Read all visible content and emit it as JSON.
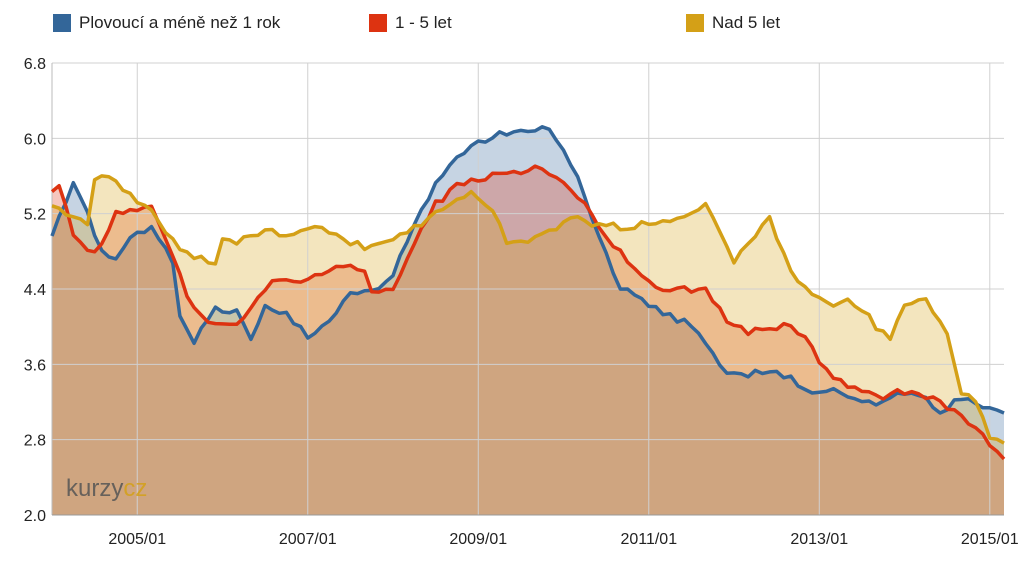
{
  "chart_data": {
    "type": "area",
    "x_start": "2004/01",
    "x_end": "2015/03",
    "xticks": [
      "2005/01",
      "2007/01",
      "2009/01",
      "2011/01",
      "2013/01",
      "2015/01"
    ],
    "yticks": [
      "2.0",
      "2.8",
      "3.6",
      "4.4",
      "5.2",
      "6.0",
      "6.8"
    ],
    "ylim": [
      2.0,
      6.8
    ],
    "grid": true,
    "legend_position": "top",
    "watermark": {
      "part1": "kurzy",
      "part2": "cz",
      "color1": "#555555",
      "color2": "#d4a017"
    },
    "series": [
      {
        "name": "Plovoucí a méně než 1 rok",
        "color": "#336699",
        "anchors": [
          [
            "2004/01",
            4.95
          ],
          [
            "2004/04",
            5.55
          ],
          [
            "2004/06",
            5.2
          ],
          [
            "2004/08",
            4.8
          ],
          [
            "2004/10",
            4.75
          ],
          [
            "2004/12",
            4.95
          ],
          [
            "2005/03",
            5.05
          ],
          [
            "2005/06",
            4.7
          ],
          [
            "2005/07",
            4.1
          ],
          [
            "2005/09",
            3.85
          ],
          [
            "2005/12",
            4.2
          ],
          [
            "2006/03",
            4.15
          ],
          [
            "2006/05",
            3.9
          ],
          [
            "2006/07",
            4.2
          ],
          [
            "2006/10",
            4.15
          ],
          [
            "2007/01",
            3.9
          ],
          [
            "2007/04",
            4.05
          ],
          [
            "2007/07",
            4.35
          ],
          [
            "2007/10",
            4.35
          ],
          [
            "2008/01",
            4.55
          ],
          [
            "2008/04",
            5.1
          ],
          [
            "2008/07",
            5.5
          ],
          [
            "2008/10",
            5.8
          ],
          [
            "2009/01",
            5.95
          ],
          [
            "2009/04",
            6.05
          ],
          [
            "2009/07",
            6.1
          ],
          [
            "2009/09",
            6.05
          ],
          [
            "2009/10",
            6.15
          ],
          [
            "2009/12",
            6.0
          ],
          [
            "2010/03",
            5.6
          ],
          [
            "2010/06",
            4.95
          ],
          [
            "2010/09",
            4.4
          ],
          [
            "2010/12",
            4.3
          ],
          [
            "2011/03",
            4.15
          ],
          [
            "2011/06",
            4.05
          ],
          [
            "2011/09",
            3.85
          ],
          [
            "2011/12",
            3.5
          ],
          [
            "2012/03",
            3.5
          ],
          [
            "2012/06",
            3.55
          ],
          [
            "2012/09",
            3.45
          ],
          [
            "2012/12",
            3.3
          ],
          [
            "2013/03",
            3.35
          ],
          [
            "2013/06",
            3.2
          ],
          [
            "2013/09",
            3.2
          ],
          [
            "2013/12",
            3.3
          ],
          [
            "2014/03",
            3.3
          ],
          [
            "2014/06",
            3.1
          ],
          [
            "2014/09",
            3.25
          ],
          [
            "2014/12",
            3.15
          ],
          [
            "2015/03",
            3.05
          ]
        ]
      },
      {
        "name": "1 - 5 let",
        "color": "#dd3311",
        "anchors": [
          [
            "2004/01",
            5.45
          ],
          [
            "2004/02",
            5.5
          ],
          [
            "2004/04",
            5.0
          ],
          [
            "2004/06",
            4.8
          ],
          [
            "2004/08",
            4.85
          ],
          [
            "2004/10",
            5.2
          ],
          [
            "2004/12",
            5.25
          ],
          [
            "2005/03",
            5.25
          ],
          [
            "2005/06",
            4.75
          ],
          [
            "2005/08",
            4.35
          ],
          [
            "2005/10",
            4.1
          ],
          [
            "2005/12",
            4.05
          ],
          [
            "2006/03",
            4.0
          ],
          [
            "2006/05",
            4.2
          ],
          [
            "2006/08",
            4.5
          ],
          [
            "2006/11",
            4.5
          ],
          [
            "2007/01",
            4.5
          ],
          [
            "2007/04",
            4.6
          ],
          [
            "2007/07",
            4.65
          ],
          [
            "2007/09",
            4.6
          ],
          [
            "2007/10",
            4.4
          ],
          [
            "2008/01",
            4.4
          ],
          [
            "2008/04",
            4.9
          ],
          [
            "2008/07",
            5.3
          ],
          [
            "2008/10",
            5.5
          ],
          [
            "2009/01",
            5.55
          ],
          [
            "2009/04",
            5.65
          ],
          [
            "2009/07",
            5.6
          ],
          [
            "2009/09",
            5.7
          ],
          [
            "2009/12",
            5.55
          ],
          [
            "2010/03",
            5.4
          ],
          [
            "2010/06",
            5.05
          ],
          [
            "2010/09",
            4.8
          ],
          [
            "2010/12",
            4.55
          ],
          [
            "2011/03",
            4.4
          ],
          [
            "2011/06",
            4.4
          ],
          [
            "2011/09",
            4.4
          ],
          [
            "2011/12",
            4.05
          ],
          [
            "2012/03",
            3.95
          ],
          [
            "2012/06",
            4.0
          ],
          [
            "2012/09",
            4.0
          ],
          [
            "2012/11",
            3.9
          ],
          [
            "2013/01",
            3.6
          ],
          [
            "2013/03",
            3.45
          ],
          [
            "2013/06",
            3.35
          ],
          [
            "2013/09",
            3.25
          ],
          [
            "2013/12",
            3.3
          ],
          [
            "2014/03",
            3.3
          ],
          [
            "2014/06",
            3.2
          ],
          [
            "2014/09",
            3.05
          ],
          [
            "2014/12",
            2.85
          ],
          [
            "2015/03",
            2.6
          ]
        ]
      },
      {
        "name": "Nad 5 let",
        "color": "#d4a017",
        "anchors": [
          [
            "2004/01",
            5.3
          ],
          [
            "2004/03",
            5.2
          ],
          [
            "2004/06",
            5.1
          ],
          [
            "2004/07",
            5.55
          ],
          [
            "2004/09",
            5.6
          ],
          [
            "2004/11",
            5.45
          ],
          [
            "2005/01",
            5.35
          ],
          [
            "2005/03",
            5.25
          ],
          [
            "2005/05",
            5.0
          ],
          [
            "2005/07",
            4.85
          ],
          [
            "2005/09",
            4.75
          ],
          [
            "2005/12",
            4.65
          ],
          [
            "2006/01",
            4.95
          ],
          [
            "2006/03",
            4.9
          ],
          [
            "2006/06",
            5.0
          ],
          [
            "2006/09",
            5.0
          ],
          [
            "2006/12",
            5.0
          ],
          [
            "2007/03",
            5.05
          ],
          [
            "2007/05",
            5.0
          ],
          [
            "2007/07",
            4.9
          ],
          [
            "2007/09",
            4.85
          ],
          [
            "2007/12",
            4.9
          ],
          [
            "2008/03",
            5.0
          ],
          [
            "2008/06",
            5.15
          ],
          [
            "2008/09",
            5.3
          ],
          [
            "2008/12",
            5.4
          ],
          [
            "2009/03",
            5.25
          ],
          [
            "2009/05",
            4.9
          ],
          [
            "2009/08",
            4.9
          ],
          [
            "2009/11",
            5.0
          ],
          [
            "2010/02",
            5.15
          ],
          [
            "2010/05",
            5.1
          ],
          [
            "2010/08",
            5.1
          ],
          [
            "2010/10",
            5.0
          ],
          [
            "2010/12",
            5.1
          ],
          [
            "2011/03",
            5.1
          ],
          [
            "2011/06",
            5.15
          ],
          [
            "2011/09",
            5.3
          ],
          [
            "2011/11",
            5.0
          ],
          [
            "2012/01",
            4.7
          ],
          [
            "2012/03",
            4.9
          ],
          [
            "2012/06",
            5.15
          ],
          [
            "2012/08",
            4.75
          ],
          [
            "2012/10",
            4.5
          ],
          [
            "2012/12",
            4.35
          ],
          [
            "2013/03",
            4.2
          ],
          [
            "2013/05",
            4.3
          ],
          [
            "2013/07",
            4.2
          ],
          [
            "2013/09",
            4.0
          ],
          [
            "2013/11",
            3.9
          ],
          [
            "2014/01",
            4.2
          ],
          [
            "2014/04",
            4.3
          ],
          [
            "2014/07",
            3.9
          ],
          [
            "2014/09",
            3.3
          ],
          [
            "2014/11",
            3.2
          ],
          [
            "2015/01",
            2.85
          ],
          [
            "2015/03",
            2.75
          ]
        ]
      }
    ]
  }
}
